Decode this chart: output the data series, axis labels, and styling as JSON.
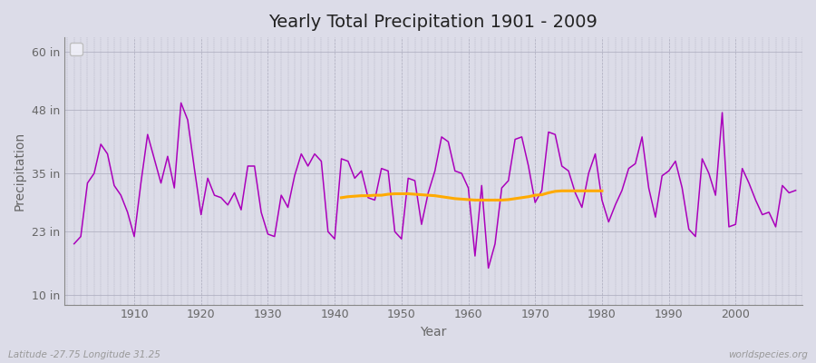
{
  "title": "Yearly Total Precipitation 1901 - 2009",
  "xlabel": "Year",
  "ylabel": "Precipitation",
  "background_color": "#dcdce8",
  "plot_bg_color": "#dcdce8",
  "precipitation_color": "#aa00bb",
  "trend_color": "#ffaa00",
  "yticks": [
    10,
    23,
    35,
    48,
    60
  ],
  "ytick_labels": [
    "10 in",
    "23 in",
    "35 in",
    "48 in",
    "60 in"
  ],
  "ylim": [
    8,
    63
  ],
  "xlim": [
    1899.5,
    2010
  ],
  "years": [
    1901,
    1902,
    1903,
    1904,
    1905,
    1906,
    1907,
    1908,
    1909,
    1910,
    1911,
    1912,
    1913,
    1914,
    1915,
    1916,
    1917,
    1918,
    1919,
    1920,
    1921,
    1922,
    1923,
    1924,
    1925,
    1926,
    1927,
    1928,
    1929,
    1930,
    1931,
    1932,
    1933,
    1934,
    1935,
    1936,
    1937,
    1938,
    1939,
    1940,
    1941,
    1942,
    1943,
    1944,
    1945,
    1946,
    1947,
    1948,
    1949,
    1950,
    1951,
    1952,
    1953,
    1954,
    1955,
    1956,
    1957,
    1958,
    1959,
    1960,
    1961,
    1962,
    1963,
    1964,
    1965,
    1966,
    1967,
    1968,
    1969,
    1970,
    1971,
    1972,
    1973,
    1974,
    1975,
    1976,
    1977,
    1978,
    1979,
    1980,
    1981,
    1982,
    1983,
    1984,
    1985,
    1986,
    1987,
    1988,
    1989,
    1990,
    1991,
    1992,
    1993,
    1994,
    1995,
    1996,
    1997,
    1998,
    1999,
    2000,
    2001,
    2002,
    2003,
    2004,
    2005,
    2006,
    2007,
    2008,
    2009
  ],
  "precip": [
    20.5,
    22.0,
    33.0,
    35.0,
    41.0,
    39.0,
    32.5,
    30.5,
    27.0,
    22.0,
    33.0,
    43.0,
    38.0,
    33.0,
    38.5,
    32.0,
    49.5,
    46.0,
    36.0,
    26.5,
    34.0,
    30.5,
    30.0,
    28.5,
    31.0,
    27.5,
    36.5,
    36.5,
    27.0,
    22.5,
    22.0,
    30.5,
    28.0,
    34.5,
    39.0,
    36.5,
    39.0,
    37.5,
    23.0,
    21.5,
    38.0,
    37.5,
    34.0,
    35.5,
    30.0,
    29.5,
    36.0,
    35.5,
    23.0,
    21.5,
    34.0,
    33.5,
    24.5,
    31.0,
    35.5,
    42.5,
    41.5,
    35.5,
    35.0,
    32.0,
    18.0,
    32.5,
    15.5,
    20.5,
    32.0,
    33.5,
    42.0,
    42.5,
    36.5,
    29.0,
    31.5,
    43.5,
    43.0,
    36.5,
    35.5,
    31.0,
    28.0,
    35.0,
    39.0,
    29.5,
    25.0,
    28.5,
    31.5,
    36.0,
    37.0,
    42.5,
    32.0,
    26.0,
    34.5,
    35.5,
    37.5,
    32.0,
    23.5,
    22.0,
    38.0,
    35.0,
    30.5,
    47.5,
    24.0,
    24.5,
    36.0,
    33.0,
    29.5,
    26.5,
    27.0,
    24.0,
    32.5,
    31.0,
    31.5
  ],
  "trend_years": [
    1941,
    1942,
    1943,
    1944,
    1945,
    1946,
    1947,
    1948,
    1949,
    1950,
    1951,
    1952,
    1953,
    1954,
    1955,
    1956,
    1957,
    1958,
    1959,
    1960,
    1961,
    1962,
    1963,
    1964,
    1965,
    1966,
    1967,
    1968,
    1969,
    1970,
    1971,
    1972,
    1973,
    1974,
    1975,
    1976,
    1977,
    1978,
    1979,
    1980
  ],
  "trend_values": [
    30.0,
    30.2,
    30.3,
    30.4,
    30.4,
    30.5,
    30.5,
    30.7,
    30.8,
    30.8,
    30.8,
    30.7,
    30.6,
    30.5,
    30.4,
    30.2,
    30.0,
    29.8,
    29.7,
    29.6,
    29.5,
    29.5,
    29.5,
    29.5,
    29.5,
    29.6,
    29.8,
    30.0,
    30.2,
    30.5,
    30.6,
    31.0,
    31.3,
    31.4,
    31.4,
    31.4,
    31.4,
    31.4,
    31.4,
    31.4
  ],
  "footer_left": "Latitude -27.75 Longitude 31.25",
  "footer_right": "worldspecies.org"
}
